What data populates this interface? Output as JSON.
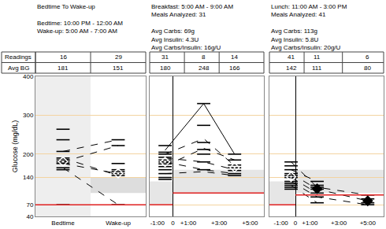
{
  "table": {
    "row_labels": [
      "Readings",
      "Avg BG"
    ]
  },
  "chart_data": [
    {
      "type": "scatter",
      "title_lines": [
        [
          "Bedtime To Wake-up"
        ],
        [
          "Bedtime: 10:00 PM - 12:00 AM",
          "Wake-up: 5:00 AM - 7:00 AM"
        ]
      ],
      "ylabel": "Glucose (mg/dL)",
      "xlim": [
        -0.5,
        1.5
      ],
      "xticks": [
        {
          "value": 0,
          "label": "Bedtime"
        },
        {
          "value": 1,
          "label": "Wake-up"
        }
      ],
      "ylim": [
        40,
        400
      ],
      "yticks": [
        40,
        70,
        140,
        200,
        300,
        400
      ],
      "grid": true,
      "columns": [
        {
          "x": 0,
          "readings": 16,
          "avg_bg": 181,
          "marker": "diamond-open-dot",
          "values": [
            264,
            237,
            207,
            190,
            185,
            180,
            176,
            165,
            160,
            70
          ]
        },
        {
          "x": 1,
          "readings": 29,
          "avg_bg": 151,
          "marker": "diamond-open-dot",
          "values": [
            237,
            222,
            176,
            160,
            155,
            150,
            145,
            70
          ]
        }
      ],
      "series": [
        {
          "x": [
            0,
            1
          ],
          "values": [
            190,
            145
          ],
          "line_style": "dash"
        },
        {
          "x": [
            0,
            1
          ],
          "values": [
            180,
            222
          ],
          "line_style": "dash"
        },
        {
          "x": [
            0,
            1
          ],
          "values": [
            165,
            70
          ],
          "line_style": "dash"
        },
        {
          "x": [
            0,
            1
          ],
          "values": [
            207,
            237
          ],
          "line_style": "dash"
        },
        {
          "x": [
            0,
            1
          ],
          "values": [
            176,
            150
          ],
          "line_style": "dash"
        }
      ],
      "bands": [
        {
          "x0": -0.5,
          "x1": 0.5,
          "y0": 40,
          "y1": 400,
          "color": "#eeeeee"
        },
        {
          "x0": 0.5,
          "x1": 1.5,
          "y0": 100,
          "y1": 140,
          "color": "#dddddd"
        }
      ],
      "low_lines": [
        {
          "x0": -0.5,
          "x1": 1.5,
          "y": 70
        }
      ]
    },
    {
      "type": "scatter",
      "title_lines": [
        [
          "Breakfast: 5:00 AM - 9:00 AM",
          "Meals Analyzed: 31"
        ],
        [
          "Avg Carbs: 69g",
          "Avg Insulin: 4.3U",
          "Avg Carbs/Insulin: 16g/U"
        ]
      ],
      "xlim": [
        -1.5,
        5.9
      ],
      "xticks": [
        {
          "value": -1,
          "label": "-1:00"
        },
        0,
        {
          "value": 1,
          "label": "+1:00"
        },
        {
          "value": 3,
          "label": "+3:00"
        },
        {
          "value": 5,
          "label": "+5:00"
        }
      ],
      "ylim": [
        40,
        400
      ],
      "yticks": [
        40,
        70,
        140,
        200,
        300,
        400
      ],
      "grid": true,
      "tick_labels": "x",
      "columns": [
        {
          "x": -0.5,
          "readings": 31,
          "avg_bg": 180,
          "marker": "diamond-open-dot",
          "values": [
            222,
            205,
            200,
            192,
            185,
            180,
            175,
            168,
            160,
            150,
            140,
            135
          ]
        },
        {
          "x": 2,
          "readings": 8,
          "avg_bg": 248,
          "marker": "diamond-open-dot",
          "values": [
            330,
            274,
            230,
            212,
            200,
            180,
            160
          ]
        },
        {
          "x": 4,
          "readings": 14,
          "avg_bg": 166,
          "marker": "diamond-open-dot",
          "values": [
            200,
            185,
            172,
            165,
            158,
            150,
            145
          ]
        }
      ],
      "series": [
        {
          "x": [
            -0.5,
            2,
            4
          ],
          "values": [
            210,
            330,
            200
          ],
          "line_style": "solid"
        },
        {
          "x": [
            -0.5,
            2,
            4
          ],
          "values": [
            200,
            240,
            170
          ],
          "line_style": "dash"
        },
        {
          "x": [
            -0.5,
            2,
            4
          ],
          "values": [
            190,
            180,
            160
          ],
          "line_style": "dash"
        },
        {
          "x": [
            -0.5,
            2,
            4
          ],
          "values": [
            180,
            160,
            150
          ],
          "line_style": "dash"
        },
        {
          "x": [
            -0.5,
            2,
            4
          ],
          "values": [
            170,
            215,
            185
          ],
          "line_style": "dash"
        },
        {
          "x": [
            -0.5,
            2,
            4
          ],
          "values": [
            150,
            155,
            145
          ],
          "line_style": "dash"
        }
      ],
      "bands": [
        {
          "x0": -1.5,
          "x1": 0,
          "y0": 70,
          "y1": 130,
          "color": "#e6e6e6"
        },
        {
          "x0": 0,
          "x1": 5.9,
          "y0": 100,
          "y1": 160,
          "color": "#e6e6e6"
        }
      ],
      "low_lines": [
        {
          "x0": -1.5,
          "x1": 0,
          "y": 70
        },
        {
          "x0": 0,
          "x1": 5.9,
          "y": 100
        }
      ]
    },
    {
      "type": "scatter",
      "title_lines": [
        [
          "Lunch: 11:00 AM - 3:00 PM",
          "Meals Analyzed: 41"
        ],
        [
          "Avg Carbs: 113g",
          "Avg Insulin: 5.8U",
          "Avg Carbs/Insulin: 20g/U"
        ]
      ],
      "xlim": [
        -1.8,
        6.1
      ],
      "xticks": [
        {
          "value": -1,
          "label": "-1:00"
        },
        0,
        {
          "value": 1,
          "label": "+1:00"
        },
        {
          "value": 3,
          "label": "+3:00"
        },
        {
          "value": 5,
          "label": "+5:00"
        }
      ],
      "ylim": [
        40,
        400
      ],
      "yticks": [
        40,
        70,
        140,
        200,
        300,
        400
      ],
      "grid": true,
      "tick_labels": "x",
      "columns": [
        {
          "x": -0.3,
          "readings": 41,
          "avg_bg": 142,
          "marker": "diamond-open-dot",
          "values": [
            180,
            170,
            160,
            150,
            145,
            140,
            130,
            125,
            120,
            115,
            110
          ]
        },
        {
          "x": 1.5,
          "readings": 11,
          "avg_bg": 111,
          "marker": "diamond",
          "values": [
            130,
            120,
            115,
            110,
            100,
            90,
            75
          ]
        },
        {
          "x": 5,
          "readings": 6,
          "avg_bg": 80,
          "marker": "diamond",
          "values": [
            95,
            85,
            75,
            70
          ]
        }
      ],
      "series": [
        {
          "x": [
            -0.3,
            1.5,
            5
          ],
          "values": [
            180,
            115,
            95
          ],
          "line_style": "dash"
        },
        {
          "x": [
            -0.3,
            1.5
          ],
          "values": [
            160,
            130
          ],
          "line_style": "dash"
        },
        {
          "x": [
            -0.3,
            1.5,
            5
          ],
          "values": [
            150,
            110,
            80
          ],
          "line_style": "dash"
        },
        {
          "x": [
            -0.3,
            1.5,
            5
          ],
          "values": [
            130,
            90,
            70
          ],
          "line_style": "dash"
        },
        {
          "x": [
            -0.3,
            1.5
          ],
          "values": [
            120,
            75
          ],
          "line_style": "dash"
        },
        {
          "x": [
            -0.3,
            1.5
          ],
          "values": [
            140,
            100
          ],
          "line_style": "dash"
        }
      ],
      "bands": [
        {
          "x0": -1.8,
          "x1": 0,
          "y0": 70,
          "y1": 130,
          "color": "#e6e6e6"
        },
        {
          "x0": 0,
          "x1": 6.1,
          "y0": 100,
          "y1": 160,
          "color": "#e6e6e6"
        }
      ],
      "low_lines": [
        {
          "x0": -1.8,
          "x1": 0,
          "y": 70
        },
        {
          "x0": 0,
          "x1": 6.1,
          "y": 95
        }
      ]
    }
  ]
}
